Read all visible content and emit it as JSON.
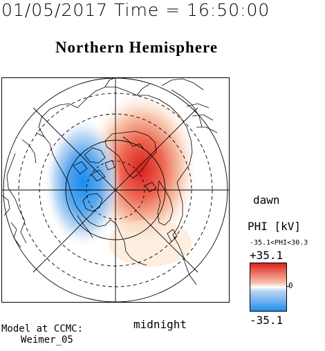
{
  "header": {
    "timestamp": "01/05/2017 Time = 16:50:00",
    "title": "Northern Hemisphere"
  },
  "map": {
    "projection": "polar",
    "hemisphere": "north",
    "labels": {
      "dawn": "dawn",
      "midnight": "midnight"
    }
  },
  "legend": {
    "title": "PHI [kV]",
    "range_text": "-35.1<PHI<30.3",
    "max_label": "+35.1",
    "min_label": "-35.1",
    "zero_label": "0",
    "colors": {
      "positive": "#d8211f",
      "zero": "#ffffff",
      "negative": "#1f8ff0"
    }
  },
  "credits": {
    "line1": "Model at CCMC:",
    "line2": "Weimer_05"
  }
}
